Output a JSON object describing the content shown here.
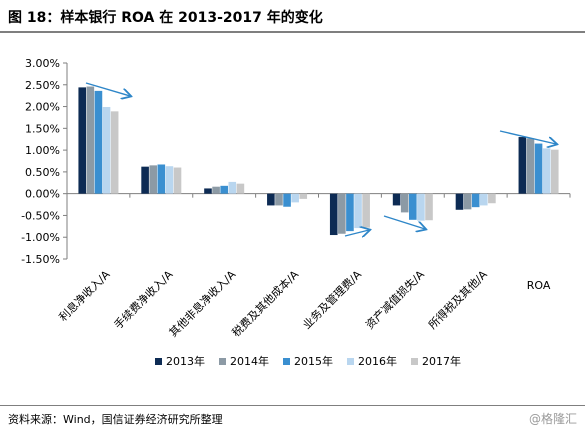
{
  "header": {
    "title": "图 18：样本银行 ROA 在 2013-2017 年的变化"
  },
  "footer": {
    "source": "资料来源：Wind，国信证券经济研究所整理",
    "watermark": "@格隆汇"
  },
  "colors": {
    "series": [
      "#0d2b54",
      "#8c9aa5",
      "#3a8fd0",
      "#b9d6ef",
      "#c8c8c8"
    ],
    "arrow": "#2e86c8",
    "axis": "#7f7f7f"
  },
  "chart_data": {
    "type": "bar",
    "categories": [
      "利息净收入/A",
      "手续费净收入/A",
      "其他非息净收入/A",
      "税费及其他成本/A",
      "业务及管理费/A",
      "资产减值损失/A",
      "所得税及其他/A",
      "ROA"
    ],
    "series": [
      {
        "name": "2013年",
        "values": [
          2.44,
          0.62,
          0.12,
          -0.27,
          -0.95,
          -0.27,
          -0.37,
          1.3
        ]
      },
      {
        "name": "2014年",
        "values": [
          2.46,
          0.65,
          0.16,
          -0.27,
          -0.92,
          -0.43,
          -0.36,
          1.27
        ]
      },
      {
        "name": "2015年",
        "values": [
          2.36,
          0.67,
          0.18,
          -0.3,
          -0.86,
          -0.6,
          -0.31,
          1.15
        ]
      },
      {
        "name": "2016年",
        "values": [
          1.99,
          0.63,
          0.27,
          -0.2,
          -0.79,
          -0.62,
          -0.27,
          1.04
        ]
      },
      {
        "name": "2017年",
        "values": [
          1.89,
          0.6,
          0.23,
          -0.12,
          -0.78,
          -0.61,
          -0.22,
          1.01
        ]
      }
    ],
    "yticks": [
      "3.00%",
      "2.50%",
      "2.00%",
      "1.50%",
      "1.00%",
      "0.50%",
      "0.00%",
      "-0.50%",
      "-1.00%",
      "-1.50%"
    ],
    "ylim": [
      -1.5,
      3.0
    ],
    "xlabel": "",
    "ylabel": "",
    "legend_position": "bottom",
    "grid": false
  }
}
